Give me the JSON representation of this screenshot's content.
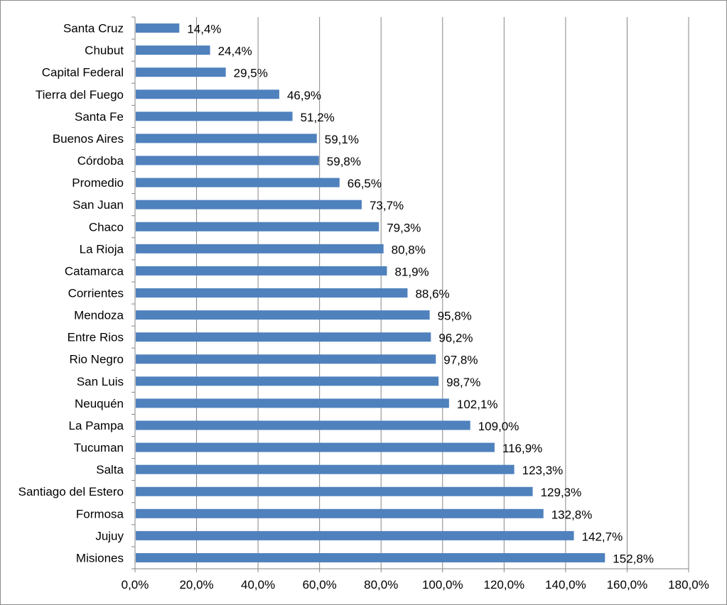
{
  "chart_data": {
    "type": "bar",
    "orientation": "horizontal",
    "categories": [
      "Santa Cruz",
      "Chubut",
      "Capital Federal",
      "Tierra del Fuego",
      "Santa Fe",
      "Buenos Aires",
      "Córdoba",
      "Promedio",
      "San Juan",
      "Chaco",
      "La Rioja",
      "Catamarca",
      "Corrientes",
      "Mendoza",
      "Entre Rios",
      "Rio Negro",
      "San Luis",
      "Neuquén",
      "La Pampa",
      "Tucuman",
      "Salta",
      "Santiago del Estero",
      "Formosa",
      "Jujuy",
      "Misiones"
    ],
    "values": [
      14.4,
      24.4,
      29.5,
      46.9,
      51.2,
      59.1,
      59.8,
      66.5,
      73.7,
      79.3,
      80.8,
      81.9,
      88.6,
      95.8,
      96.2,
      97.8,
      98.7,
      102.1,
      109.0,
      116.9,
      123.3,
      129.3,
      132.8,
      142.7,
      152.8
    ],
    "value_labels": [
      "14,4%",
      "24,4%",
      "29,5%",
      "46,9%",
      "51,2%",
      "59,1%",
      "59,8%",
      "66,5%",
      "73,7%",
      "79,3%",
      "80,8%",
      "81,9%",
      "88,6%",
      "95,8%",
      "96,2%",
      "97,8%",
      "98,7%",
      "102,1%",
      "109,0%",
      "116,9%",
      "123,3%",
      "129,3%",
      "132,8%",
      "142,7%",
      "152,8%"
    ],
    "x_ticks": [
      0,
      20,
      40,
      60,
      80,
      100,
      120,
      140,
      160,
      180
    ],
    "x_tick_labels": [
      "0,0%",
      "20,0%",
      "40,0%",
      "60,0%",
      "80,0%",
      "100,0%",
      "120,0%",
      "140,0%",
      "160,0%",
      "180,0%"
    ],
    "xlim": [
      0,
      180
    ],
    "grid": "vertical",
    "legend": "none",
    "title": "",
    "xlabel": "",
    "ylabel": "",
    "bar_color": "#4f81bd",
    "grid_color": "#868686"
  }
}
